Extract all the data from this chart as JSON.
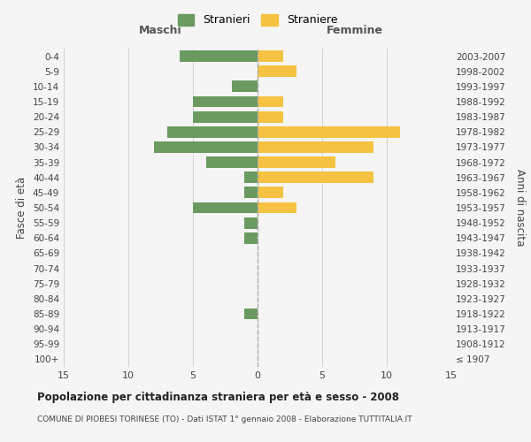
{
  "age_groups": [
    "100+",
    "95-99",
    "90-94",
    "85-89",
    "80-84",
    "75-79",
    "70-74",
    "65-69",
    "60-64",
    "55-59",
    "50-54",
    "45-49",
    "40-44",
    "35-39",
    "30-34",
    "25-29",
    "20-24",
    "15-19",
    "10-14",
    "5-9",
    "0-4"
  ],
  "birth_years": [
    "≤ 1907",
    "1908-1912",
    "1913-1917",
    "1918-1922",
    "1923-1927",
    "1928-1932",
    "1933-1937",
    "1938-1942",
    "1943-1947",
    "1948-1952",
    "1953-1957",
    "1958-1962",
    "1963-1967",
    "1968-1972",
    "1973-1977",
    "1978-1982",
    "1983-1987",
    "1988-1992",
    "1993-1997",
    "1998-2002",
    "2003-2007"
  ],
  "maschi": [
    0,
    0,
    0,
    1,
    0,
    0,
    0,
    0,
    1,
    1,
    5,
    1,
    1,
    4,
    8,
    7,
    5,
    5,
    2,
    0,
    6
  ],
  "femmine": [
    0,
    0,
    0,
    0,
    0,
    0,
    0,
    0,
    0,
    0,
    3,
    2,
    9,
    6,
    9,
    11,
    2,
    2,
    0,
    3,
    2
  ],
  "maschi_color": "#6a9a5f",
  "femmine_color": "#f5c242",
  "background_color": "#f5f5f5",
  "grid_color": "#cccccc",
  "title": "Popolazione per cittadinanza straniera per età e sesso - 2008",
  "subtitle": "COMUNE DI PIOBESI TORINESE (TO) - Dati ISTAT 1° gennaio 2008 - Elaborazione TUTTITALIA.IT",
  "xlabel_left": "Maschi",
  "xlabel_right": "Femmine",
  "ylabel_left": "Fasce di età",
  "ylabel_right": "Anni di nascita",
  "legend_maschi": "Stranieri",
  "legend_femmine": "Straniere",
  "xlim": 15,
  "bar_height": 0.75
}
